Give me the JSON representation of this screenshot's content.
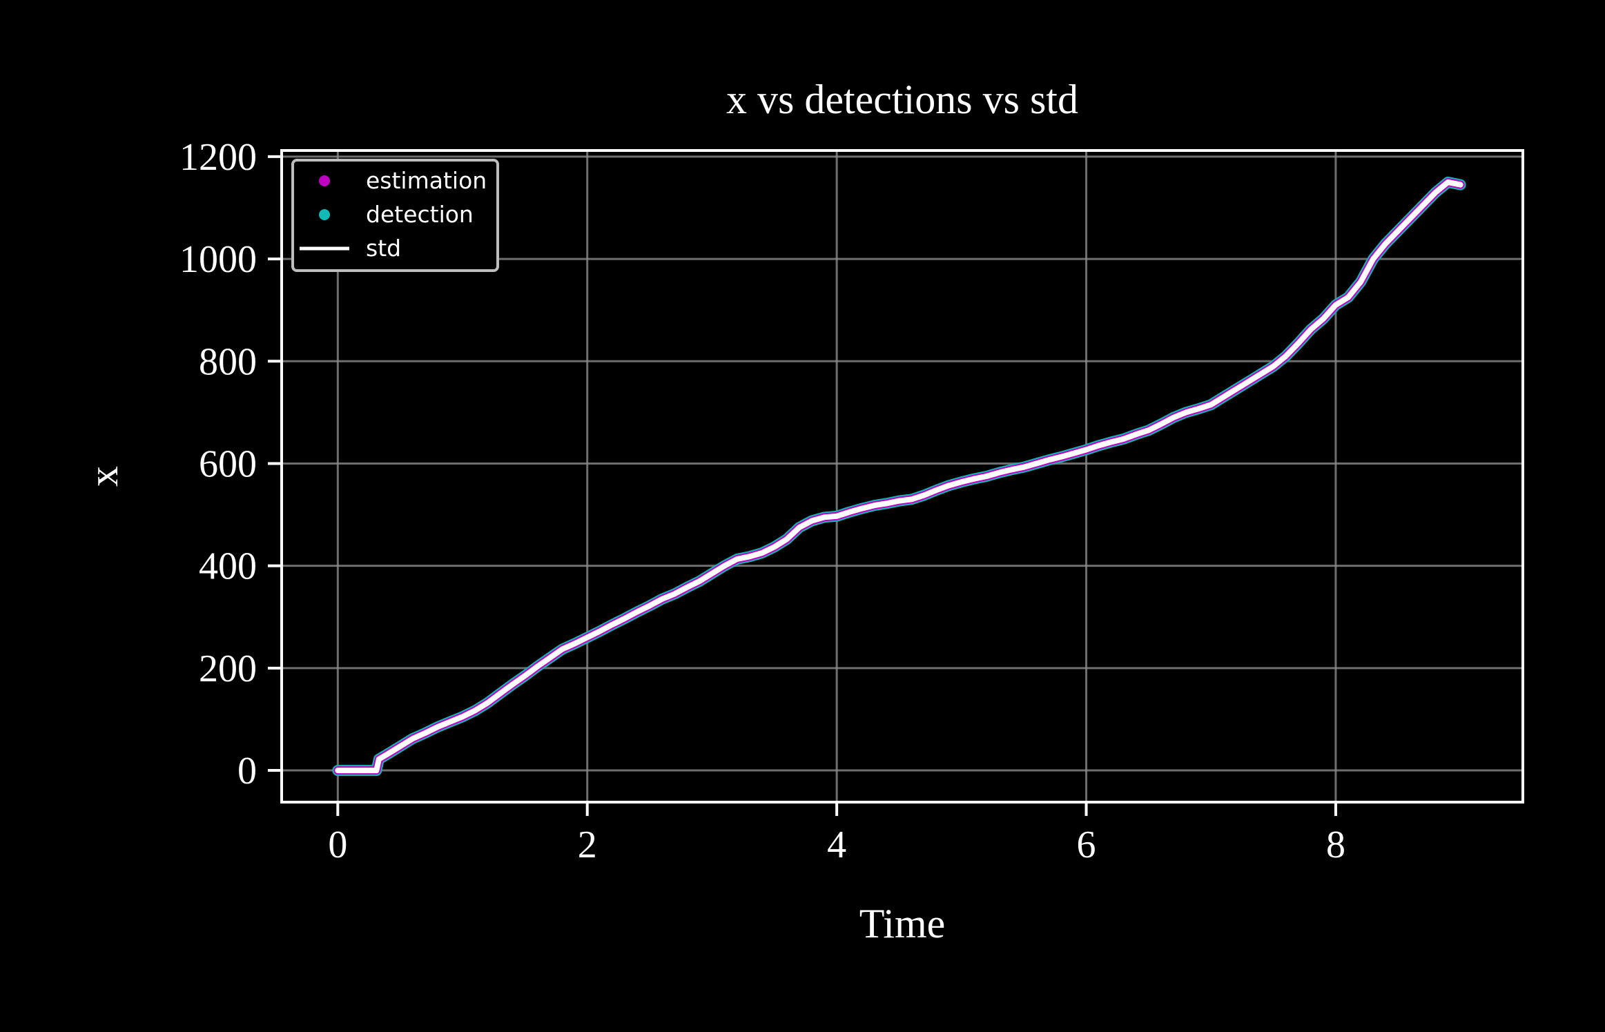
{
  "chart_data": {
    "type": "line",
    "title": "x vs detections vs std",
    "xlabel": "Time",
    "ylabel": "x",
    "xlim": [
      -0.45,
      9.5
    ],
    "ylim": [
      -62,
      1212
    ],
    "x_ticks": [
      0,
      2,
      4,
      6,
      8
    ],
    "y_ticks": [
      0,
      200,
      400,
      600,
      800,
      1000,
      1200
    ],
    "grid": true,
    "legend_position": "top-left",
    "colors": {
      "background": "#000000",
      "estimation": "#c000c0",
      "detection": "#10b8b8",
      "std": "#ffffff",
      "grid": "#8a8a8a",
      "axes": "#ffffff"
    },
    "legend": [
      {
        "key": "estimation",
        "label": "estimation",
        "marker": "dot"
      },
      {
        "key": "detection",
        "label": "detection",
        "marker": "dot"
      },
      {
        "key": "std",
        "label": "std",
        "marker": "line"
      }
    ],
    "series": [
      {
        "name": "std",
        "x": [
          0.0,
          0.15,
          0.31,
          0.33,
          0.4,
          0.5,
          0.6,
          0.7,
          0.8,
          0.9,
          1.0,
          1.1,
          1.2,
          1.3,
          1.4,
          1.5,
          1.6,
          1.7,
          1.8,
          1.9,
          2.0,
          2.1,
          2.2,
          2.3,
          2.4,
          2.5,
          2.6,
          2.7,
          2.8,
          2.9,
          3.0,
          3.1,
          3.2,
          3.3,
          3.4,
          3.5,
          3.6,
          3.7,
          3.8,
          3.9,
          4.0,
          4.1,
          4.2,
          4.3,
          4.4,
          4.5,
          4.6,
          4.7,
          4.8,
          4.9,
          5.0,
          5.1,
          5.2,
          5.3,
          5.4,
          5.5,
          5.6,
          5.7,
          5.8,
          5.9,
          6.0,
          6.1,
          6.2,
          6.3,
          6.4,
          6.5,
          6.6,
          6.7,
          6.8,
          6.9,
          7.0,
          7.1,
          7.2,
          7.3,
          7.4,
          7.5,
          7.6,
          7.7,
          7.8,
          7.9,
          8.0,
          8.1,
          8.2,
          8.3,
          8.4,
          8.5,
          8.6,
          8.7,
          8.8,
          8.9,
          9.0
        ],
        "y": [
          0,
          0,
          0,
          22,
          32,
          47,
          62,
          73,
          85,
          95,
          105,
          117,
          132,
          150,
          168,
          185,
          203,
          220,
          237,
          248,
          260,
          272,
          285,
          297,
          310,
          322,
          335,
          345,
          358,
          370,
          385,
          400,
          413,
          418,
          425,
          437,
          452,
          475,
          488,
          495,
          497,
          505,
          512,
          518,
          522,
          527,
          530,
          538,
          548,
          557,
          564,
          570,
          575,
          582,
          588,
          593,
          600,
          607,
          613,
          620,
          627,
          635,
          642,
          648,
          657,
          665,
          677,
          690,
          700,
          707,
          715,
          730,
          745,
          760,
          775,
          790,
          810,
          835,
          862,
          883,
          910,
          925,
          955,
          1000,
          1030,
          1055,
          1080,
          1105,
          1130,
          1150,
          1145
        ]
      },
      {
        "name": "estimation",
        "same_as": "std"
      },
      {
        "name": "detection",
        "same_as": "std"
      }
    ]
  }
}
